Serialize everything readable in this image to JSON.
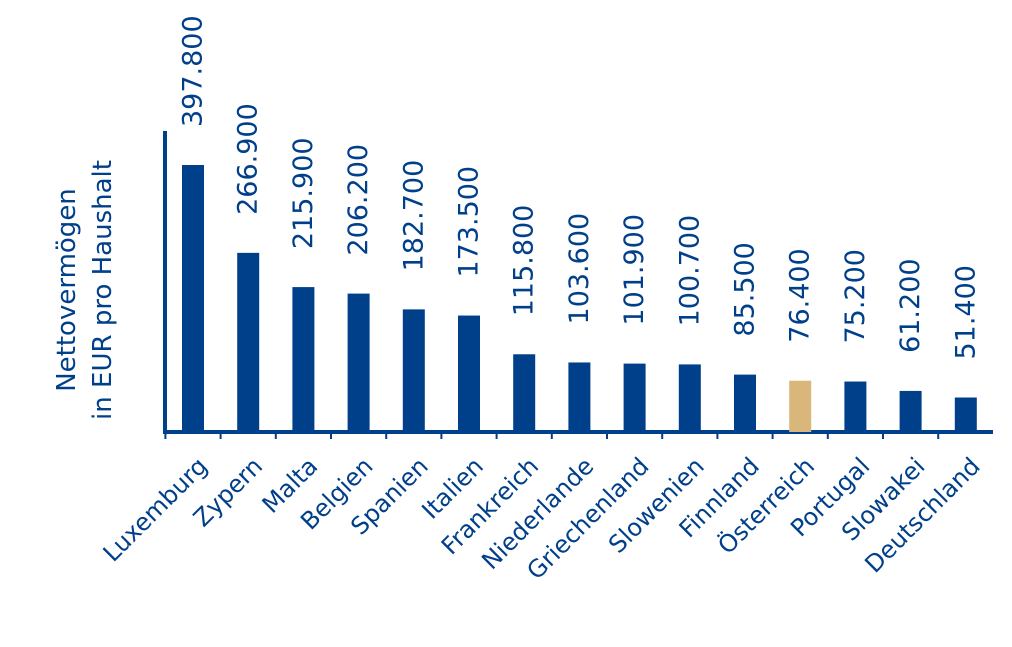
{
  "chart_data": {
    "type": "bar",
    "title": "",
    "xlabel": "",
    "ylabel": [
      "Nettovermögen",
      "in EUR pro Haushalt"
    ],
    "ylim": [
      0,
      400000
    ],
    "grid": false,
    "legend": "none",
    "categories": [
      "Luxemburg",
      "Zypern",
      "Malta",
      "Belgien",
      "Spanien",
      "Italien",
      "Frankreich",
      "Niederlande",
      "Griechenland",
      "Slowenien",
      "Finnland",
      "Österreich",
      "Portugal",
      "Slowakei",
      "Deutschland"
    ],
    "values": [
      397800,
      266900,
      215900,
      206200,
      182700,
      173500,
      115800,
      103600,
      101900,
      100700,
      85500,
      76400,
      75200,
      61200,
      51400
    ],
    "data_labels": [
      "397.800",
      "266.900",
      "215.900",
      "206.200",
      "182.700",
      "173.500",
      "115.800",
      "103.600",
      "101.900",
      "100.700",
      "85.500",
      "76.400",
      "75.200",
      "61.200",
      "51.400"
    ],
    "highlight_category": "Österreich",
    "colors": {
      "bar": "#003f8a",
      "highlight": "#d9b77a",
      "text": "#003f8a",
      "axis": "#003f8a"
    }
  }
}
